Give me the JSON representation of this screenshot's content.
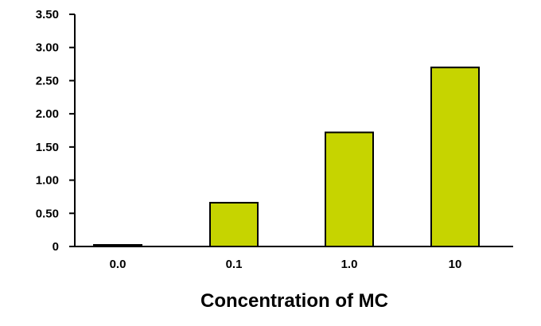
{
  "chart_data": {
    "type": "bar",
    "categories": [
      "0.0",
      "0.1",
      "1.0",
      "10"
    ],
    "values": [
      0.02,
      0.66,
      1.72,
      2.7
    ],
    "y_tick_labels": [
      "0",
      "0.50",
      "1.00",
      "1.50",
      "2.00",
      "2.50",
      "3.00",
      "3.50"
    ],
    "y_ticks": [
      0,
      0.5,
      1.0,
      1.5,
      2.0,
      2.5,
      3.0,
      3.5
    ],
    "ylim": [
      0,
      3.5
    ],
    "title": "",
    "xlabel": "Concentration of MC",
    "ylabel": "",
    "grid": false,
    "legend": "none",
    "bar_color": "#c6d400",
    "edge_color": "#000000"
  }
}
